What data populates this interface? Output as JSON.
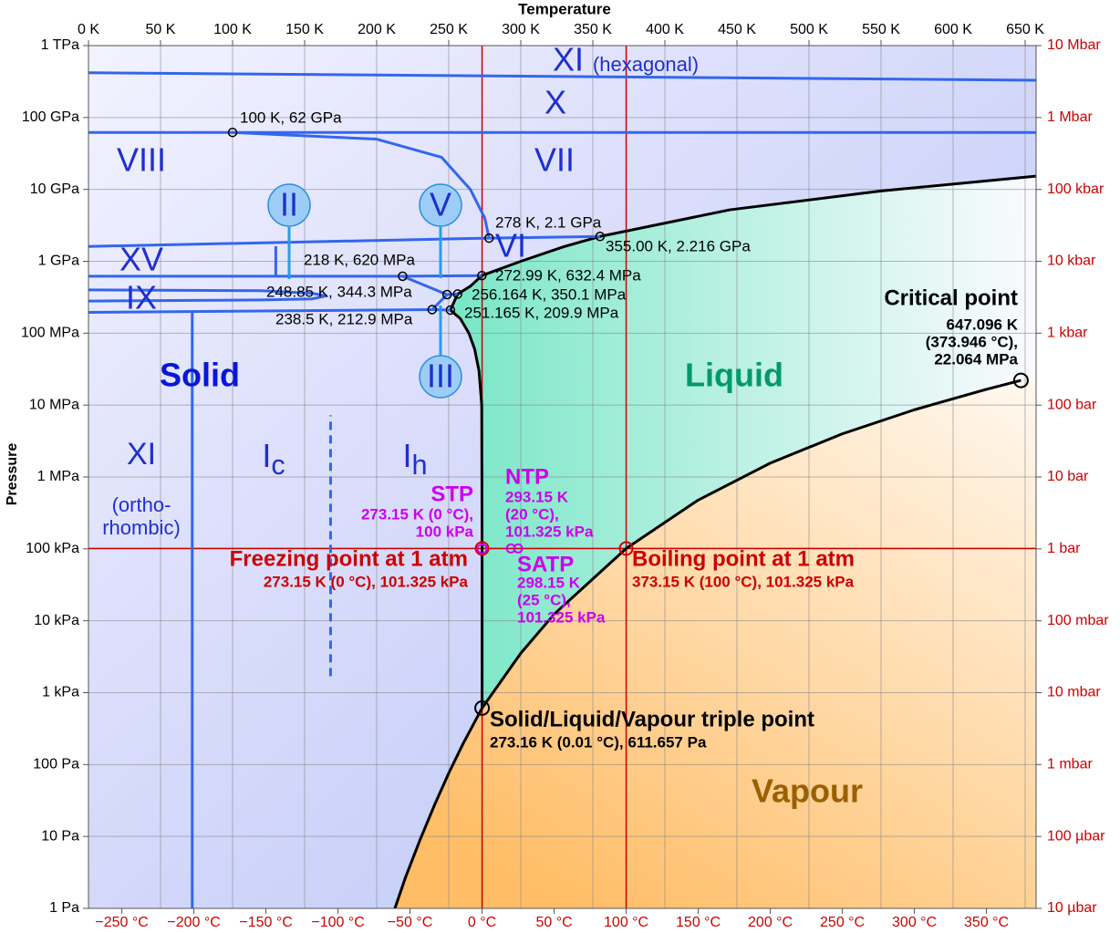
{
  "chart_data": {
    "type": "phase-diagram",
    "x_label": "Temperature",
    "y_label": "Pressure",
    "y_scale": "log",
    "grid": true,
    "xlim": [
      0,
      657.6
    ],
    "xticks": [
      {
        "value": 0,
        "label": "0 K"
      },
      {
        "value": 50,
        "label": "50 K"
      },
      {
        "value": 100,
        "label": "100 K"
      },
      {
        "value": 150,
        "label": "150 K"
      },
      {
        "value": 200,
        "label": "200 K"
      },
      {
        "value": 250,
        "label": "250 K"
      },
      {
        "value": 300,
        "label": "300 K"
      },
      {
        "value": 350,
        "label": "350 K"
      },
      {
        "value": 400,
        "label": "400 K"
      },
      {
        "value": 450,
        "label": "450 K"
      },
      {
        "value": 500,
        "label": "500 K"
      },
      {
        "value": 550,
        "label": "550 K"
      },
      {
        "value": 600,
        "label": "600 K"
      },
      {
        "value": 650,
        "label": "650 K"
      }
    ],
    "x2lim": [
      -273.15,
      384.45
    ],
    "x2ticks": [
      {
        "value": -250,
        "label": "−250 °C"
      },
      {
        "value": -200,
        "label": "−200 °C"
      },
      {
        "value": -150,
        "label": "−150 °C"
      },
      {
        "value": -100,
        "label": "−100 °C"
      },
      {
        "value": -50,
        "label": "−50 °C"
      },
      {
        "value": 0,
        "label": "0 °C"
      },
      {
        "value": 50,
        "label": "50 °C"
      },
      {
        "value": 100,
        "label": "100 °C"
      },
      {
        "value": 150,
        "label": "150 °C"
      },
      {
        "value": 200,
        "label": "200 °C"
      },
      {
        "value": 250,
        "label": "250 °C"
      },
      {
        "value": 300,
        "label": "300 °C"
      },
      {
        "value": 350,
        "label": "350 °C"
      }
    ],
    "x2_color": "#cc0000",
    "ylim": [
      1,
      1000000000000
    ],
    "yticks": [
      {
        "value": 1000000000000,
        "label": "1 TPa"
      },
      {
        "value": 100000000000,
        "label": "100 GPa"
      },
      {
        "value": 10000000000,
        "label": "10 GPa"
      },
      {
        "value": 1000000000,
        "label": "1 GPa"
      },
      {
        "value": 100000000,
        "label": "100 MPa"
      },
      {
        "value": 10000000,
        "label": "10 MPa"
      },
      {
        "value": 1000000,
        "label": "1 MPa"
      },
      {
        "value": 100000,
        "label": "100 kPa"
      },
      {
        "value": 10000,
        "label": "10 kPa"
      },
      {
        "value": 1000,
        "label": "1 kPa"
      },
      {
        "value": 100,
        "label": "100 Pa"
      },
      {
        "value": 10,
        "label": "10 Pa"
      },
      {
        "value": 1,
        "label": "1 Pa"
      }
    ],
    "y2lim": [
      1e-05,
      10000000
    ],
    "y2ticks": [
      {
        "value": 10000000,
        "label": "10 Mbar"
      },
      {
        "value": 1000000,
        "label": "1 Mbar"
      },
      {
        "value": 100000,
        "label": "100 kbar"
      },
      {
        "value": 10000,
        "label": "10 kbar"
      },
      {
        "value": 1000,
        "label": "1 kbar"
      },
      {
        "value": 100,
        "label": "100 bar"
      },
      {
        "value": 10,
        "label": "10 bar"
      },
      {
        "value": 1,
        "label": "1 bar"
      },
      {
        "value": 0.1,
        "label": "100 mbar"
      },
      {
        "value": 0.01,
        "label": "10 mbar"
      },
      {
        "value": 0.001,
        "label": "1 mbar"
      },
      {
        "value": 0.0001,
        "label": "100 µbar"
      },
      {
        "value": 1e-05,
        "label": "10 µbar"
      }
    ],
    "y2_color": "#cc0000",
    "series": [
      {
        "color": "#000000",
        "x": [
          210,
          220,
          230,
          240,
          250,
          260,
          273.16
        ],
        "values": [
          0.7,
          2.7,
          8.9,
          27,
          76,
          196,
          611.657
        ]
      },
      {
        "color": "#000000",
        "x": [
          273.16,
          300,
          323.15,
          373.15,
          423,
          473,
          523,
          573,
          623,
          647.096
        ],
        "values": [
          611.657,
          3537,
          12350,
          101325,
          476000,
          1555000,
          3976000,
          8590000,
          16530000,
          22064000
        ]
      },
      {
        "color": "#000000",
        "x": [
          273.16,
          273.15,
          272.9,
          271,
          268,
          264,
          258,
          251.165,
          256.164,
          265,
          272.99,
          300,
          330,
          355,
          445,
          550,
          657.6
        ],
        "values": [
          611.657,
          101325,
          10000000,
          30000000,
          60000000,
          100000000,
          160000000,
          209900000,
          350100000,
          450000000,
          632400000,
          1000000000,
          1600000000,
          2216000000,
          5200000000,
          9500000000,
          15300000000
        ]
      },
      {
        "color": "#3366ee",
        "x": [
          0,
          657.6
        ],
        "values": [
          420000000000,
          330000000000
        ]
      },
      {
        "color": "#3366ee",
        "x": [
          0,
          657.6
        ],
        "values": [
          62000000000,
          62000000000
        ]
      },
      {
        "color": "#3366ee",
        "x": [
          100,
          200,
          245,
          265,
          275,
          278
        ],
        "values": [
          62000000000,
          50000000000,
          28000000000,
          10000000000,
          4000000000,
          2100000000
        ]
      },
      {
        "color": "#3366ee",
        "x": [
          278,
          355
        ],
        "values": [
          2100000000,
          2216000000
        ]
      },
      {
        "color": "#3366ee",
        "x": [
          0,
          278
        ],
        "values": [
          1610000000,
          2100000000
        ]
      },
      {
        "color": "#3366ee",
        "x": [
          0,
          218,
          272.99
        ],
        "values": [
          620000000,
          620000000,
          632400000
        ]
      },
      {
        "color": "#3366ee",
        "x": [
          130,
          130
        ],
        "values": [
          620000000,
          1620000000
        ]
      },
      {
        "color": "#3366ee",
        "x": [
          218,
          248.85
        ],
        "values": [
          620000000,
          344300000
        ]
      },
      {
        "color": "#3366ee",
        "x": [
          248.85,
          256.164
        ],
        "values": [
          344300000,
          350100000
        ]
      },
      {
        "color": "#3366ee",
        "x": [
          238.5,
          248.85
        ],
        "values": [
          212900000,
          344300000
        ]
      },
      {
        "color": "#3366ee",
        "x": [
          238.5,
          251.165
        ],
        "values": [
          212900000,
          209900000
        ]
      },
      {
        "color": "#3366ee",
        "x": [
          0,
          238.5
        ],
        "values": [
          195000000,
          212900000
        ]
      },
      {
        "color": "#3366ee",
        "x": [
          0,
          120,
          155,
          165,
          155,
          120,
          0
        ],
        "values": [
          400000000,
          390000000,
          360000000,
          330000000,
          300000000,
          290000000,
          280000000
        ]
      },
      {
        "color": "#3366ee",
        "x": [
          72,
          72
        ],
        "values": [
          1,
          195000000
        ]
      },
      {
        "color": "#3366ee",
        "dashed": true,
        "x": [
          168,
          168
        ],
        "values": [
          1700,
          7200000
        ]
      }
    ],
    "points": {
      "x": [
        100,
        278,
        355,
        218,
        272.99,
        248.85,
        256.164,
        238.5,
        251.165
      ],
      "values": [
        62000000000,
        2100000000,
        2216000000,
        620000000,
        632400000,
        344300000,
        350100000,
        212900000,
        209900000
      ],
      "labels": [
        "100 K, 62 GPa",
        "278 K, 2.1 GPa",
        "355.00 K, 2.216 GPa",
        "218 K, 620 MPa",
        "272.99 K, 632.4 MPa",
        "248.85 K, 344.3 MPa",
        "256.164 K, 350.1 MPa",
        "238.5 K, 212.9 MPa",
        "251.165 K, 209.9 MPa"
      ]
    },
    "reference_lines": {
      "color": "#cc0000",
      "x": [
        273.15,
        373.15
      ],
      "y": [
        101325
      ]
    },
    "special_points": [
      {
        "name": "Solid/Liquid/Vapour triple point",
        "x": 273.16,
        "value": 611.657,
        "lines": [
          "273.16 K (0.01 °C), 611.657 Pa"
        ],
        "color": "#000000"
      },
      {
        "name": "Critical point",
        "x": 647.096,
        "value": 22064000,
        "lines": [
          "647.096 K",
          "(373.946 °C),",
          "22.064 MPa"
        ],
        "color": "#000000"
      },
      {
        "name": "Freezing point at 1 atm",
        "x": 273.15,
        "value": 101325,
        "lines": [
          "273.15 K (0 °C), 101.325 kPa"
        ],
        "color": "#cc0000"
      },
      {
        "name": "Boiling point at 1 atm",
        "x": 373.15,
        "value": 101325,
        "lines": [
          "373.15 K (100 °C), 101.325 kPa"
        ],
        "color": "#cc0000"
      },
      {
        "name": "STP",
        "x": 273.15,
        "value": 100000,
        "lines": [
          "273.15 K (0 °C),",
          "100 kPa"
        ],
        "color": "#cc00ee"
      },
      {
        "name": "NTP",
        "x": 293.15,
        "value": 101325,
        "lines": [
          "293.15 K",
          "(20 °C),",
          "101.325 kPa"
        ],
        "color": "#cc00ee"
      },
      {
        "name": "SATP",
        "x": 298.15,
        "value": 101325,
        "lines": [
          "298.15 K",
          "(25 °C),",
          "101.325 kPa"
        ],
        "color": "#cc00ee"
      }
    ],
    "regions": [
      {
        "label": "XI",
        "color": "#1f2fd0"
      },
      {
        "label": "(hexagonal)",
        "color": "#1f2fd0"
      },
      {
        "label": "X",
        "color": "#1f2fd0"
      },
      {
        "label": "VIII",
        "color": "#1f2fd0"
      },
      {
        "label": "VII",
        "color": "#1f2fd0"
      },
      {
        "label": "XV",
        "color": "#1f2fd0"
      },
      {
        "label": "IX",
        "color": "#1f2fd0"
      },
      {
        "label": "VI",
        "color": "#1f2fd0"
      },
      {
        "label": "II",
        "color": "#1f2fd0",
        "circled": true
      },
      {
        "label": "V",
        "color": "#1f2fd0",
        "circled": true
      },
      {
        "label": "III",
        "color": "#1f2fd0",
        "circled": true
      },
      {
        "label": "Solid",
        "color": "#0a16d8",
        "bold": true
      },
      {
        "label": "Liquid",
        "color": "#00996a",
        "bold": true
      },
      {
        "label": "Vapour",
        "color": "#9a6000",
        "bold": true
      },
      {
        "label": "XI",
        "color": "#1f2fd0"
      },
      {
        "label": "(ortho-",
        "color": "#1f2fd0"
      },
      {
        "label": "rhombic)",
        "color": "#1f2fd0"
      },
      {
        "label": "I",
        "subscript": "c",
        "color": "#1f2fd0"
      },
      {
        "label": "I",
        "subscript": "h",
        "color": "#1f2fd0"
      }
    ]
  }
}
